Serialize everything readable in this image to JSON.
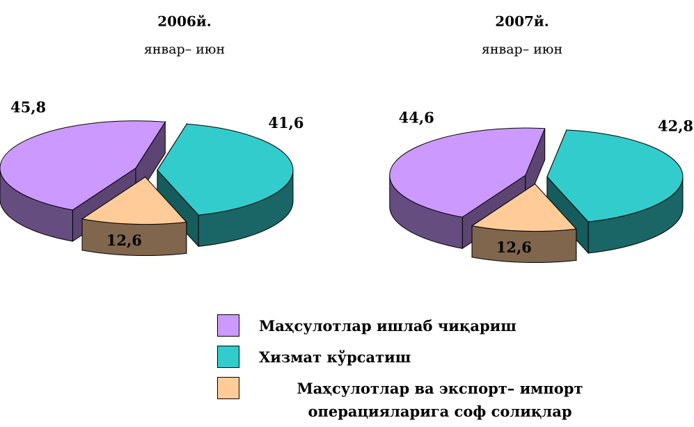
{
  "chart_data": [
    {
      "type": "pie",
      "title": "2006й.",
      "subtitle": "январ– июн",
      "categories": [
        "Маҳсулотлар ишлаб чиқариш",
        "Хизмат кўрсатиш",
        "Маҳсулотлар ва экспорт– импорт операцияларига соф солиқлар"
      ],
      "values": [
        45.8,
        41.6,
        12.6
      ],
      "value_labels": [
        "45,8",
        "41,6",
        "12,6"
      ],
      "colors": [
        "#cc99ff",
        "#33cccc",
        "#ffcc99"
      ]
    },
    {
      "type": "pie",
      "title": "2007й.",
      "subtitle": "январ– июн",
      "values": [
        44.6,
        42.8,
        12.6
      ],
      "value_labels": [
        "44,6",
        "42,8",
        "12,6"
      ],
      "colors": [
        "#cc99ff",
        "#33cccc",
        "#ffcc99"
      ]
    }
  ]
}
